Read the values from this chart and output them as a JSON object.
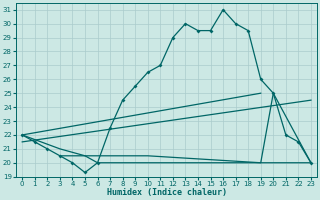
{
  "xlabel": "Humidex (Indice chaleur)",
  "bg_color": "#cce8e4",
  "line_color": "#006666",
  "xlim": [
    -0.5,
    23.5
  ],
  "ylim": [
    19,
    31.5
  ],
  "yticks": [
    19,
    20,
    21,
    22,
    23,
    24,
    25,
    26,
    27,
    28,
    29,
    30,
    31
  ],
  "xticks": [
    0,
    1,
    2,
    3,
    4,
    5,
    6,
    7,
    8,
    9,
    10,
    11,
    12,
    13,
    14,
    15,
    16,
    17,
    18,
    19,
    20,
    21,
    22,
    23
  ],
  "main_x": [
    0,
    1,
    2,
    3,
    4,
    5,
    6,
    7,
    8,
    9,
    10,
    11,
    12,
    13,
    14,
    15,
    16,
    17,
    18,
    19,
    20,
    21,
    22,
    23
  ],
  "main_y": [
    22,
    21.5,
    21,
    20.5,
    20,
    19.3,
    20,
    22.5,
    24.5,
    25.5,
    26.5,
    27,
    29,
    30,
    29.5,
    29.5,
    31,
    30,
    29.5,
    26,
    25,
    22,
    21.5,
    20
  ],
  "line_v_shape_x": [
    0,
    3,
    5,
    6,
    19,
    20,
    23
  ],
  "line_v_shape_y": [
    22,
    21,
    20.5,
    20,
    20,
    25,
    20
  ],
  "flat_line_x": [
    3,
    10,
    19,
    23
  ],
  "flat_line_y": [
    20.5,
    20.5,
    20,
    20
  ],
  "trend1_x": [
    0,
    19
  ],
  "trend1_y": [
    22,
    25
  ],
  "trend2_x": [
    0,
    23
  ],
  "trend2_y": [
    21.5,
    24.5
  ]
}
